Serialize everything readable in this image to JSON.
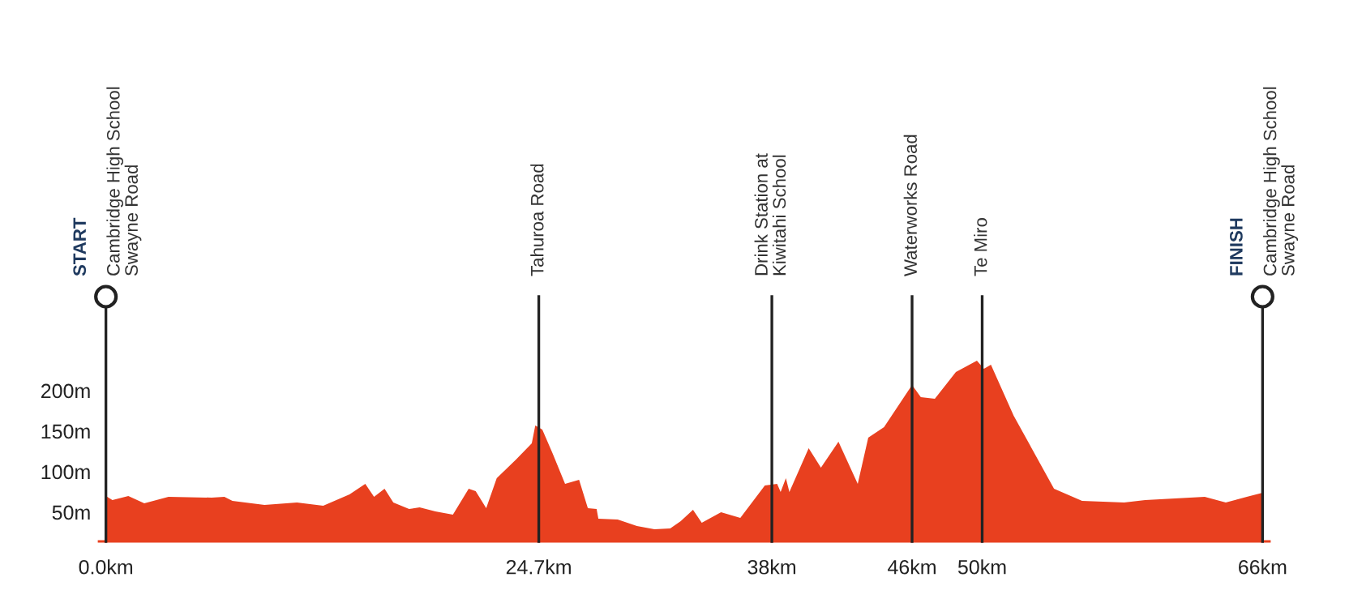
{
  "chart_data": {
    "type": "area",
    "color": "#e8401f",
    "x": [
      0,
      0.37,
      1.28,
      2.19,
      3.57,
      6.03,
      6.76,
      7.22,
      9.05,
      10.9,
      12.4,
      13.9,
      14.8,
      15.3,
      15.9,
      16.4,
      17.3,
      17.9,
      18.8,
      19.8,
      20.7,
      21.1,
      21.7,
      22.3,
      23.4,
      24.3,
      24.5,
      24.9,
      25.5,
      26.2,
      27.0,
      27.5,
      28.0,
      28.1,
      29.2,
      30.3,
      31.3,
      32.2,
      32.8,
      33.5,
      34.0,
      35.1,
      36.2,
      37.6,
      38.3,
      38.5,
      38.8,
      39.0,
      40.1,
      40.8,
      41.8,
      42.9,
      43.5,
      44.4,
      46.0,
      46.5,
      47.3,
      48.5,
      49.7,
      50.1,
      50.5,
      51.8,
      54.1,
      55.7,
      58.1,
      59.3,
      62.7,
      63.9,
      65.1,
      66
    ],
    "values": [
      70,
      65,
      70,
      61,
      69,
      68,
      69,
      64,
      59,
      62,
      58,
      72,
      85,
      69,
      79,
      62,
      54,
      56,
      51,
      47,
      79,
      76,
      55,
      92,
      115,
      135,
      157,
      152,
      122,
      85,
      90,
      55,
      54,
      42,
      41,
      33,
      29,
      30,
      39,
      53,
      37,
      50,
      43,
      83,
      85,
      75,
      92,
      75,
      129,
      105,
      137,
      85,
      142,
      155,
      207,
      192,
      190,
      223,
      237,
      227,
      232,
      169,
      79,
      64,
      62,
      65,
      69,
      62,
      69,
      74
    ],
    "xlim": [
      -0.4,
      66.4
    ],
    "ylim": [
      14,
      316
    ],
    "xticks": [
      {
        "value": 0,
        "label": "0.0km"
      },
      {
        "value": 24.7,
        "label": "24.7km"
      },
      {
        "value": 38,
        "label": "38km"
      },
      {
        "value": 46,
        "label": "46km"
      },
      {
        "value": 50,
        "label": "50km"
      },
      {
        "value": 66,
        "label": "66km"
      }
    ],
    "yticks": [
      {
        "value": 50,
        "label": "50m"
      },
      {
        "value": 100,
        "label": "100m"
      },
      {
        "value": 150,
        "label": "150m"
      },
      {
        "value": 200,
        "label": "200m"
      }
    ],
    "grid": false,
    "ref_lines": [
      {
        "axis": "x",
        "value": 0,
        "label": "START\nCambridge High School\nSwayne Road",
        "color": "#222222"
      },
      {
        "axis": "x",
        "value": 24.7,
        "label": "Tahuroa Road",
        "color": "#222222"
      },
      {
        "axis": "x",
        "value": 38,
        "label": "Drink Station at\nKiwitahi School",
        "color": "#222222"
      },
      {
        "axis": "x",
        "value": 46,
        "label": "Waterworks Road",
        "color": "#222222"
      },
      {
        "axis": "x",
        "value": 50,
        "label": "Te Miro",
        "color": "#222222"
      },
      {
        "axis": "x",
        "value": 66,
        "label": "FINISH\nCambridge High School\nSwayne Road",
        "color": "#222222"
      }
    ]
  }
}
